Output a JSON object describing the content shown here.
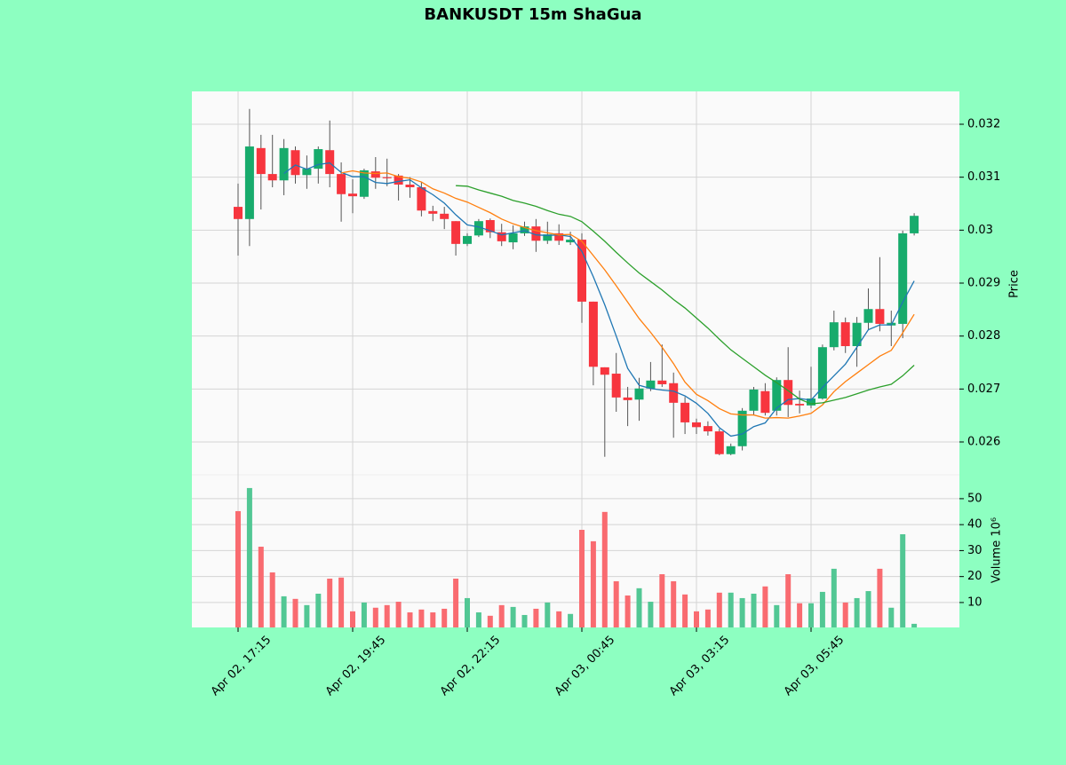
{
  "chart_data": {
    "type": "candlestick",
    "title": "BANKUSDT 15m ShaGua",
    "ylabel": "Price",
    "categories": [
      "Apr 02, 17:15",
      null,
      null,
      null,
      null,
      null,
      null,
      null,
      null,
      null,
      "Apr 02, 19:45",
      null,
      null,
      null,
      null,
      null,
      null,
      null,
      null,
      null,
      "Apr 02, 22:15",
      null,
      null,
      null,
      null,
      null,
      null,
      null,
      null,
      null,
      "Apr 03, 00:45",
      null,
      null,
      null,
      null,
      null,
      null,
      null,
      null,
      null,
      "Apr 03, 03:15",
      null,
      null,
      null,
      null,
      null,
      null,
      null,
      null,
      null,
      "Apr 03, 05:45",
      null,
      null,
      null,
      null,
      null,
      null,
      null,
      null,
      null
    ],
    "open": [
      0.03044,
      0.03021,
      0.03155,
      0.03106,
      0.03094,
      0.03151,
      0.03104,
      0.03116,
      0.03151,
      0.03106,
      0.03069,
      0.03063,
      0.03111,
      0.031,
      0.03103,
      0.03086,
      0.03081,
      0.03036,
      0.03031,
      0.03017,
      0.02974,
      0.0299,
      0.03019,
      0.02996,
      0.02977,
      0.02994,
      0.03007,
      0.0298,
      0.02994,
      0.02977,
      0.02982,
      0.02865,
      0.02741,
      0.02729,
      0.02684,
      0.0268,
      0.02701,
      0.02716,
      0.02711,
      0.02674,
      0.02637,
      0.0263,
      0.0262,
      0.02577,
      0.02592,
      0.02659,
      0.02696,
      0.02659,
      0.02717,
      0.02672,
      0.02669,
      0.02682,
      0.02779,
      0.02826,
      0.02781,
      0.02825,
      0.02851,
      0.0282,
      0.02823,
      0.02994
    ],
    "high": [
      0.03088,
      0.03229,
      0.0318,
      0.0318,
      0.03172,
      0.03158,
      0.03141,
      0.03158,
      0.03207,
      0.03128,
      0.03096,
      0.03116,
      0.03138,
      0.03135,
      0.03106,
      0.031,
      0.03091,
      0.03046,
      0.03044,
      0.03017,
      0.02994,
      0.03021,
      0.03022,
      0.03012,
      0.03009,
      0.03016,
      0.03021,
      0.03016,
      0.03011,
      0.02997,
      0.02994,
      0.02865,
      0.02741,
      0.02768,
      0.02704,
      0.02721,
      0.02751,
      0.02784,
      0.02731,
      0.02685,
      0.02644,
      0.02639,
      0.02625,
      0.02597,
      0.02664,
      0.02704,
      0.02711,
      0.02722,
      0.02779,
      0.02697,
      0.02742,
      0.02784,
      0.02848,
      0.02835,
      0.02836,
      0.0289,
      0.02949,
      0.02848,
      0.02999,
      0.03032
    ],
    "low": [
      0.02952,
      0.0297,
      0.03039,
      0.03081,
      0.03066,
      0.03088,
      0.03078,
      0.03088,
      0.03081,
      0.03016,
      0.03032,
      0.03059,
      0.03078,
      0.03083,
      0.03056,
      0.03061,
      0.03026,
      0.03017,
      0.03002,
      0.02952,
      0.0297,
      0.02987,
      0.02985,
      0.0297,
      0.02964,
      0.02989,
      0.02959,
      0.02974,
      0.02972,
      0.02972,
      0.02825,
      0.02707,
      0.02572,
      0.02657,
      0.0263,
      0.0264,
      0.02696,
      0.02704,
      0.02608,
      0.02615,
      0.02615,
      0.02612,
      0.02575,
      0.02575,
      0.02584,
      0.0265,
      0.0265,
      0.0265,
      0.02647,
      0.02654,
      0.02664,
      0.0268,
      0.02773,
      0.02768,
      0.02742,
      0.02811,
      0.02809,
      0.02781,
      0.02796,
      0.0299
    ],
    "close": [
      0.03021,
      0.03158,
      0.03106,
      0.03094,
      0.03155,
      0.03104,
      0.03116,
      0.03153,
      0.03106,
      0.03068,
      0.03064,
      0.03113,
      0.03099,
      0.03098,
      0.03086,
      0.03081,
      0.03037,
      0.03031,
      0.03021,
      0.02974,
      0.02989,
      0.03017,
      0.02996,
      0.02979,
      0.02994,
      0.03007,
      0.0298,
      0.02992,
      0.0298,
      0.02982,
      0.02865,
      0.02742,
      0.02727,
      0.02684,
      0.02679,
      0.02701,
      0.02716,
      0.02709,
      0.02674,
      0.02637,
      0.02628,
      0.0262,
      0.02577,
      0.02592,
      0.02659,
      0.02699,
      0.02655,
      0.02717,
      0.0267,
      0.02669,
      0.02682,
      0.02779,
      0.02826,
      0.02781,
      0.02825,
      0.02851,
      0.02823,
      0.02825,
      0.02994,
      0.03027
    ],
    "up_color": "#17ab6c",
    "down_color": "#f7353e",
    "up_volume_color": "#52c794",
    "down_volume_color": "#f96b70",
    "wick_color": "#555555",
    "moving_averages": [
      {
        "color": "#1f77b4",
        "values": [
          null,
          null,
          null,
          null,
          0.03107,
          0.03123,
          0.03115,
          0.03124,
          0.03127,
          0.03109,
          0.03101,
          0.03101,
          0.0309,
          0.03088,
          0.03092,
          0.03095,
          0.0308,
          0.03067,
          0.03051,
          0.03029,
          0.0301,
          0.03006,
          0.02999,
          0.02991,
          0.02995,
          0.02999,
          0.02991,
          0.0299,
          0.02991,
          0.02988,
          0.0296,
          0.02912,
          0.02859,
          0.028,
          0.02739,
          0.02707,
          0.02701,
          0.02698,
          0.02696,
          0.02687,
          0.02673,
          0.02654,
          0.02627,
          0.02611,
          0.02615,
          0.02629,
          0.02636,
          0.02664,
          0.0268,
          0.02682,
          0.02679,
          0.02703,
          0.02725,
          0.02747,
          0.02779,
          0.02812,
          0.02821,
          0.02821,
          0.02864,
          0.02904
        ]
      },
      {
        "color": "#ff7f0e",
        "values": [
          null,
          null,
          null,
          null,
          null,
          null,
          null,
          null,
          null,
          0.03108,
          0.03112,
          0.03108,
          0.03107,
          0.03108,
          0.03101,
          0.03098,
          0.03091,
          0.03078,
          0.0307,
          0.0306,
          0.03053,
          0.03043,
          0.03033,
          0.03021,
          0.03012,
          0.03005,
          0.02999,
          0.02995,
          0.02991,
          0.02992,
          0.02979,
          0.02952,
          0.02925,
          0.02895,
          0.02864,
          0.02833,
          0.02807,
          0.02779,
          0.02748,
          0.02713,
          0.0269,
          0.02678,
          0.02663,
          0.02653,
          0.02651,
          0.02651,
          0.02645,
          0.02646,
          0.02645,
          0.02649,
          0.02654,
          0.0267,
          0.02695,
          0.02714,
          0.0273,
          0.02746,
          0.02762,
          0.02773,
          0.02806,
          0.02841
        ]
      },
      {
        "color": "#2ca02c",
        "values": [
          null,
          null,
          null,
          null,
          null,
          null,
          null,
          null,
          null,
          null,
          null,
          null,
          null,
          null,
          null,
          null,
          null,
          null,
          null,
          0.03084,
          0.03083,
          0.03076,
          0.0307,
          0.03064,
          0.03056,
          0.03051,
          0.03045,
          0.03037,
          0.0303,
          0.03026,
          0.03016,
          0.02998,
          0.02979,
          0.02958,
          0.02938,
          0.02919,
          0.02903,
          0.02887,
          0.02869,
          0.02853,
          0.02834,
          0.02815,
          0.02794,
          0.02774,
          0.02758,
          0.02742,
          0.02726,
          0.02712,
          0.02697,
          0.02681,
          0.02672,
          0.02674,
          0.02679,
          0.02684,
          0.02691,
          0.02698,
          0.02704,
          0.02709,
          0.02725,
          0.02745
        ]
      }
    ],
    "ylim": [
      0.02538,
      0.03262
    ],
    "yticks": [
      0.026,
      0.027,
      0.028,
      0.029,
      0.03,
      0.031,
      0.032
    ],
    "grid": true,
    "volume": {
      "ylabel": "Volume  10⁶",
      "ylim": [
        0.4,
        59.2
      ],
      "yticks": [
        10,
        20,
        30,
        40,
        50
      ],
      "values": [
        45.2,
        54.1,
        31.5,
        21.6,
        12.4,
        11.4,
        9,
        13.4,
        19.2,
        19.6,
        6.6,
        10,
        8,
        9,
        10.3,
        6.2,
        7.3,
        6.2,
        7.6,
        19.2,
        11.7,
        6.2,
        4.9,
        9,
        8.3,
        5.2,
        7.6,
        10,
        6.6,
        5.6,
        38,
        33.6,
        44.9,
        18.2,
        12.7,
        15.5,
        10.3,
        20.9,
        18.2,
        13.1,
        6.6,
        7.3,
        13.8,
        13.8,
        11.7,
        13.4,
        16.2,
        9,
        20.9,
        9.7,
        9.7,
        14.1,
        23,
        10,
        11.7,
        14.4,
        23,
        8,
        36.3,
        1.8
      ]
    }
  }
}
